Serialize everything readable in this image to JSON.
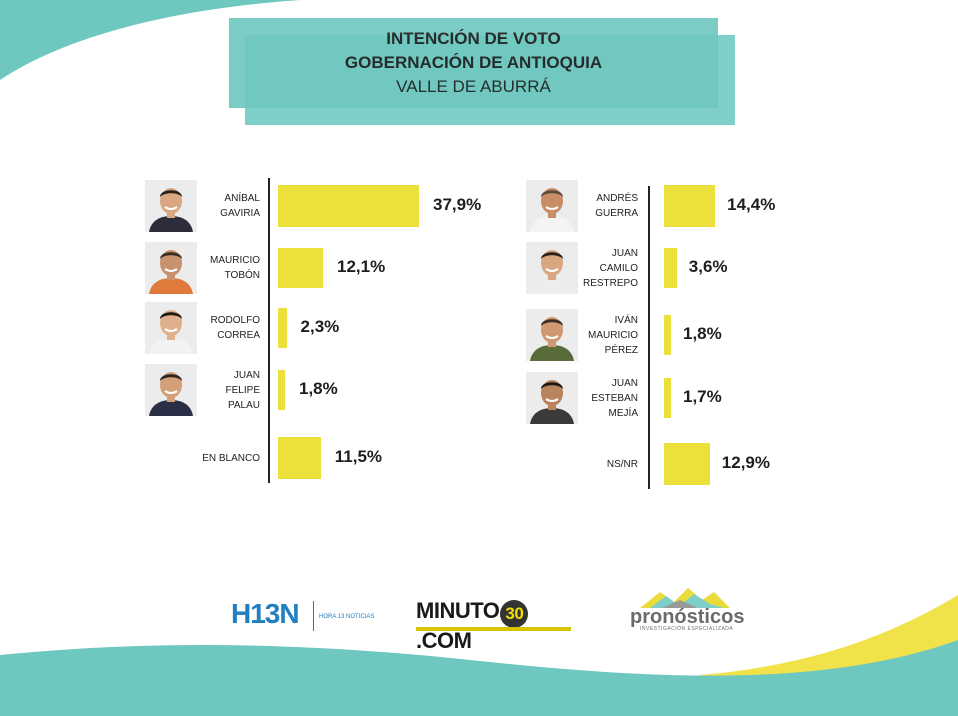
{
  "header": {
    "title_line1": "INTENCIÓN DE VOTO",
    "title_line2": "GOBERNACIÓN DE ANTIOQUIA",
    "title_line3": "VALLE DE ABURRÁ"
  },
  "colors": {
    "bar": "#ebe03c",
    "teal": "#6fc8c0",
    "yellow_accent": "#f2e24a"
  },
  "chart_data": [
    {
      "type": "bar",
      "orientation": "horizontal",
      "categories": [
        "ANÍBAL\nGAVIRIA",
        "MAURICIO\nTOBÓN",
        "RODOLFO\nCORREA",
        "JUAN\nFELIPE\nPALAU",
        "EN BLANCO"
      ],
      "values": [
        37.9,
        12.1,
        2.3,
        1.8,
        11.5
      ],
      "value_labels": [
        "37,9%",
        "12,1%",
        "2,3%",
        "1,8%",
        "11,5%"
      ],
      "photos": [
        true,
        true,
        true,
        true,
        false
      ]
    },
    {
      "type": "bar",
      "orientation": "horizontal",
      "categories": [
        "ANDRÉS\nGUERRA",
        "JUAN\nCAMILO\nRESTREPO",
        "IVÁN\nMAURICIO\nPÉREZ",
        "JUAN\nESTEBAN\nMEJÍA",
        "NS/NR"
      ],
      "values": [
        14.4,
        3.6,
        1.8,
        1.7,
        12.9
      ],
      "value_labels": [
        "14,4%",
        "3,6%",
        "1,8%",
        "1,7%",
        "12,9%"
      ],
      "photos": [
        true,
        true,
        true,
        true,
        false
      ]
    }
  ],
  "logos": {
    "h13n": "H13N",
    "h13n_sub": "HORA 13 NOTICIAS",
    "minuto_left": "MINUTO",
    "minuto_num": "30",
    "minuto_right": ".COM",
    "pronosticos": "pronósticos",
    "pronosticos_sub": "INVESTIGACIÓN ESPECIALIZADA"
  }
}
